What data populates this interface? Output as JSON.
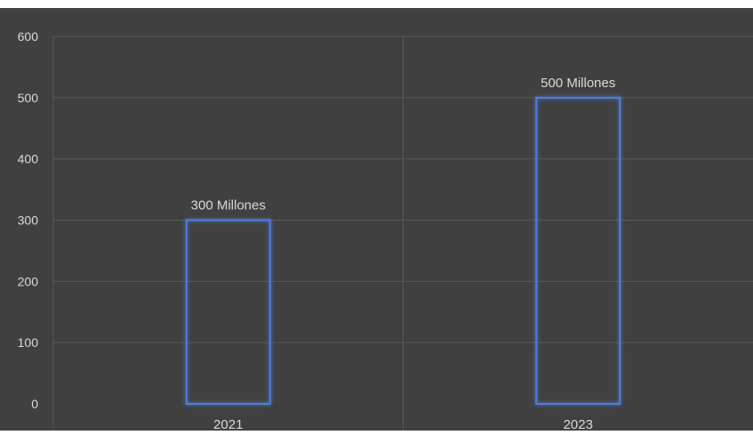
{
  "chart_data": {
    "type": "bar",
    "title": "",
    "xlabel": "",
    "ylabel": "",
    "categories": [
      "2021",
      "2023"
    ],
    "values": [
      300,
      500
    ],
    "data_labels": [
      "300 Millones",
      "500 Millones"
    ],
    "ylim": [
      0,
      600
    ],
    "y_ticks": [
      0,
      100,
      200,
      300,
      400,
      500,
      600
    ],
    "grid": true,
    "legend": "none",
    "colors": {
      "background": "#404040",
      "bar_outline": "#4f7fe0",
      "bar_glow": "#2f5fd0",
      "grid": "#595959",
      "text": "#d9d9d9"
    }
  }
}
